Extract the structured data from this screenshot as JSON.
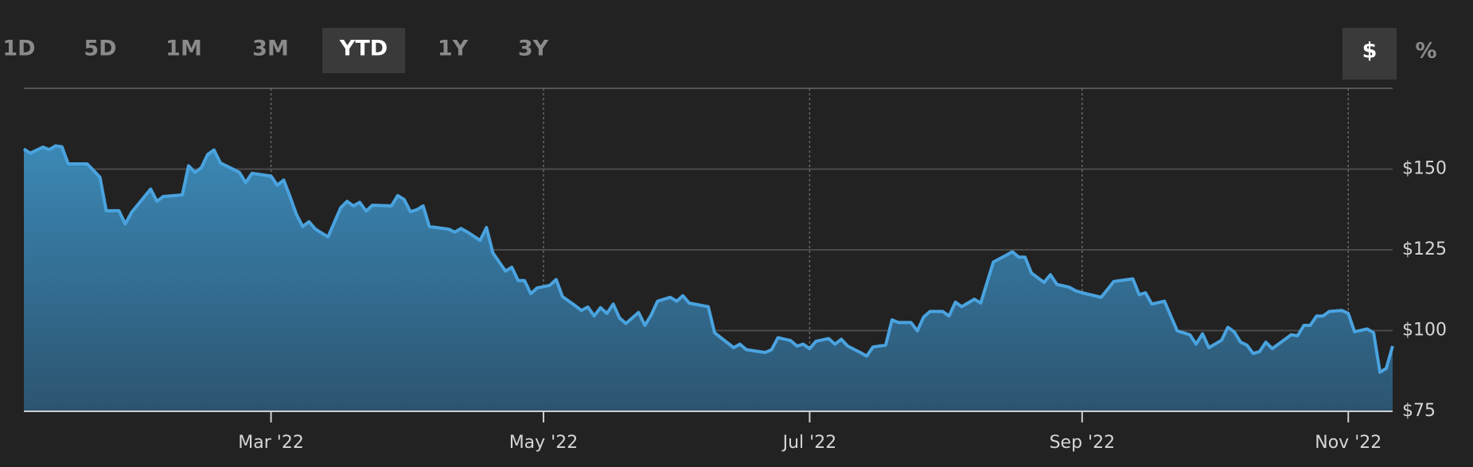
{
  "controls": {
    "ranges": [
      "1D",
      "5D",
      "1M",
      "3M",
      "YTD",
      "1Y",
      "3Y"
    ],
    "selected_range": "YTD",
    "units": [
      "$",
      "%"
    ],
    "selected_unit": "$"
  },
  "chart_data": {
    "type": "area",
    "color": "#4aa3df",
    "x": [
      0,
      1,
      3,
      4,
      5,
      6,
      7,
      10,
      12,
      13,
      15,
      16,
      17,
      20,
      21,
      22,
      25,
      26,
      27,
      28,
      29,
      30,
      31,
      34,
      35,
      36,
      39,
      40,
      41,
      42,
      43,
      44,
      45,
      46,
      48,
      50,
      51,
      52,
      53,
      54,
      55,
      58,
      59,
      60,
      61,
      62,
      63,
      64,
      67,
      68,
      69,
      70,
      72,
      73,
      74,
      76,
      77,
      78,
      79,
      80,
      81,
      83,
      84,
      85,
      87,
      88,
      89,
      90,
      91,
      92,
      93,
      94,
      95,
      97,
      98,
      99,
      100,
      102,
      103,
      104,
      105,
      108,
      109,
      112,
      113,
      114,
      117,
      118,
      119,
      121,
      122,
      123,
      124,
      125,
      127,
      128,
      129,
      130,
      132,
      133,
      134,
      136,
      137,
      138,
      140,
      141,
      142,
      143,
      145,
      146,
      147,
      148,
      150,
      151,
      153,
      155,
      156,
      157,
      158,
      159,
      161,
      162,
      163,
      165,
      166,
      167,
      170,
      171,
      172,
      175,
      176,
      177,
      178,
      180,
      182,
      184,
      185,
      186,
      187,
      189,
      190,
      191,
      192,
      193,
      194,
      195,
      196,
      197,
      200,
      201,
      202,
      203,
      204,
      205,
      206,
      208,
      209,
      210,
      212,
      213,
      214,
      215,
      216
    ],
    "values": [
      156.2,
      154.9,
      156.8,
      156.0,
      157.2,
      156.9,
      151.6,
      151.6,
      147.5,
      137.1,
      137.1,
      133.0,
      136.6,
      143.8,
      140.0,
      141.5,
      142.0,
      151.0,
      149.0,
      150.4,
      154.5,
      155.9,
      151.9,
      149.0,
      145.8,
      148.7,
      147.8,
      145.0,
      146.6,
      141.5,
      136.0,
      132.2,
      133.7,
      131.4,
      129.0,
      138.0,
      140.0,
      138.6,
      139.7,
      137.0,
      138.8,
      138.6,
      141.8,
      140.6,
      136.8,
      137.4,
      138.6,
      132.2,
      131.4,
      130.5,
      131.6,
      130.5,
      127.9,
      131.9,
      124.1,
      118.4,
      119.6,
      115.5,
      115.5,
      111.4,
      113.2,
      114.0,
      115.8,
      110.5,
      107.7,
      106.2,
      107.3,
      104.5,
      107.1,
      105.3,
      108.2,
      103.9,
      102.2,
      105.6,
      101.6,
      104.8,
      109.1,
      110.3,
      109.1,
      110.8,
      108.5,
      107.4,
      99.3,
      94.7,
      95.8,
      94.1,
      93.2,
      94.1,
      97.8,
      96.9,
      95.2,
      95.8,
      94.4,
      96.7,
      97.5,
      95.8,
      97.3,
      95.2,
      93.2,
      92.1,
      94.9,
      95.5,
      103.3,
      102.5,
      102.5,
      99.9,
      104.2,
      105.9,
      105.9,
      104.5,
      108.8,
      107.4,
      109.7,
      108.5,
      121.2,
      123.3,
      124.4,
      122.7,
      122.7,
      117.8,
      114.9,
      117.3,
      114.3,
      113.4,
      112.3,
      111.7,
      110.3,
      112.7,
      115.2,
      116.0,
      111.1,
      111.7,
      108.2,
      109.1,
      99.9,
      98.7,
      95.8,
      99.0,
      94.7,
      97.0,
      101.0,
      99.6,
      96.4,
      95.5,
      92.9,
      93.5,
      96.4,
      94.4,
      98.7,
      98.4,
      101.6,
      101.6,
      104.5,
      104.5,
      105.9,
      106.2,
      105.3,
      99.6,
      100.5,
      99.3,
      87.1,
      88.3,
      95.2
    ],
    "xlim": [
      0,
      216
    ],
    "xticks": [
      {
        "value": 39,
        "label": "Mar '22"
      },
      {
        "value": 82,
        "label": "May '22"
      },
      {
        "value": 124,
        "label": "Jul '22"
      },
      {
        "value": 167,
        "label": "Sep '22"
      },
      {
        "value": 209,
        "label": "Nov '22"
      }
    ],
    "ylim": [
      75,
      175
    ],
    "yticks": [
      {
        "value": 75,
        "label": "$75"
      },
      {
        "value": 100,
        "label": "$100"
      },
      {
        "value": 125,
        "label": "$125"
      },
      {
        "value": 150,
        "label": "$150"
      }
    ],
    "grid": true
  }
}
